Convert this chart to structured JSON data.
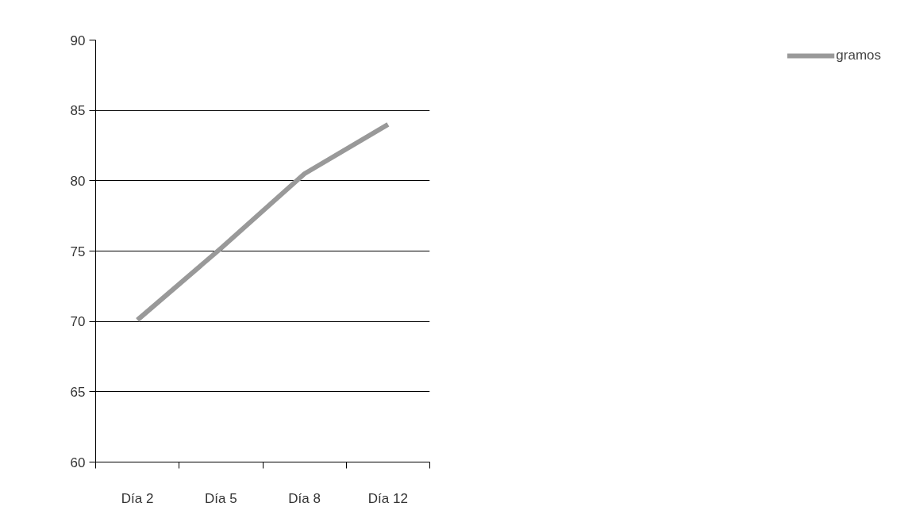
{
  "chart_data": {
    "type": "line",
    "categories": [
      "Día 2",
      "Día 5",
      "Día 8",
      "Día 12"
    ],
    "series": [
      {
        "name": "gramos",
        "color": "#999999",
        "values": [
          70.1,
          75.2,
          80.5,
          84
        ]
      }
    ],
    "ylim": [
      60,
      90
    ],
    "yticks": [
      60,
      65,
      70,
      75,
      80,
      85,
      90
    ],
    "grid": "y",
    "legend": "right",
    "marker": "none",
    "line_style": "solid"
  }
}
